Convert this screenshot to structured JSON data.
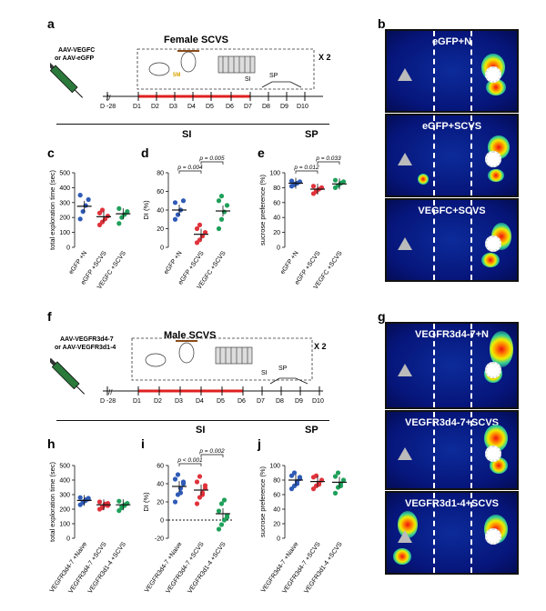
{
  "panels": {
    "a": "a",
    "b": "b",
    "c": "c",
    "d": "d",
    "e": "e",
    "f": "f",
    "g": "g",
    "h": "h",
    "i": "i",
    "j": "j"
  },
  "top": {
    "title": "Female SCVS",
    "virus_line1": "AAV-VEGFC",
    "virus_line2": "or AAV-eGFP",
    "repeat": "X 2",
    "cage_label": "5M",
    "timeline": [
      "D -28",
      "D1",
      "D2",
      "D3",
      "D4",
      "D5",
      "D6",
      "D7",
      "D8",
      "D9",
      "D10"
    ],
    "si": "SI",
    "sp": "SP",
    "section_si": "SI",
    "section_sp": "SP"
  },
  "bottom": {
    "title": "Male SCVS",
    "virus_line1": "AAV-VEGFR3d4-7",
    "virus_line2": "or AAV-VEGFR3d1-4",
    "repeat": "X 2",
    "cage_label": "5M",
    "timeline": [
      "D -28",
      "D1",
      "D2",
      "D3",
      "D4",
      "D5",
      "D6",
      "D7",
      "D8",
      "D9",
      "D10"
    ],
    "si": "SI",
    "sp": "SP",
    "section_si": "SI",
    "section_sp": "SP"
  },
  "heatmaps_top": [
    "eGFP+N",
    "eGFP+SCVS",
    "VEGFC+SCVS"
  ],
  "heatmaps_bottom": [
    "VEGFR3d4-7+N",
    "VEGFR3d4-7+SCVS",
    "VEGFR3d1-4+SCVS"
  ],
  "chart_data": [
    {
      "panel": "c",
      "type": "scatter",
      "ylabel": "total exploration time (sec)",
      "ylim": [
        0,
        500
      ],
      "yticks": [
        0,
        100,
        200,
        300,
        400,
        500
      ],
      "categories": [
        "eGFP +N",
        "eGFP +SCVS",
        "VEGFC +SCVS"
      ],
      "colors": [
        "#2f5bb7",
        "#e0333b",
        "#1fa05a"
      ],
      "means": [
        275,
        205,
        225
      ],
      "points": [
        [
          190,
          240,
          280,
          320,
          350
        ],
        [
          150,
          170,
          190,
          210,
          230,
          250
        ],
        [
          160,
          200,
          220,
          240,
          260
        ]
      ]
    },
    {
      "panel": "d",
      "type": "scatter",
      "ylabel": "DI (%)",
      "ylim": [
        0,
        80
      ],
      "yticks": [
        0,
        20,
        40,
        60,
        80
      ],
      "categories": [
        "eGFP +N",
        "eGFP +SCVS",
        "VEGFC +SCVS"
      ],
      "colors": [
        "#2f5bb7",
        "#e0333b",
        "#1fa05a"
      ],
      "means": [
        40,
        14,
        39
      ],
      "points": [
        [
          30,
          35,
          40,
          50,
          48
        ],
        [
          5,
          8,
          12,
          16,
          20,
          24
        ],
        [
          20,
          30,
          38,
          45,
          50,
          55
        ]
      ],
      "pvalues": [
        "p = 0.004",
        "p = 0.005"
      ]
    },
    {
      "panel": "e",
      "type": "scatter",
      "ylabel": "sucrose preference (%)",
      "ylim": [
        0,
        100
      ],
      "yticks": [
        0,
        20,
        40,
        60,
        80,
        100
      ],
      "categories": [
        "eGFP +N",
        "eGFP +SCVS",
        "VEGFC +SCVS"
      ],
      "colors": [
        "#2f5bb7",
        "#e0333b",
        "#1fa05a"
      ],
      "means": [
        86,
        78,
        85
      ],
      "points": [
        [
          82,
          84,
          86,
          88,
          89,
          85
        ],
        [
          72,
          75,
          78,
          80,
          82,
          76
        ],
        [
          80,
          83,
          86,
          88,
          90
        ]
      ],
      "pvalues": [
        "p = 0.012",
        "p = 0.033"
      ]
    },
    {
      "panel": "h",
      "type": "scatter",
      "ylabel": "total exploration time (sec)",
      "ylim": [
        0,
        500
      ],
      "yticks": [
        0,
        100,
        200,
        300,
        400,
        500
      ],
      "categories": [
        "VEGFR3d4-7 +Naive",
        "VEGFR3d4-7 +SCVS",
        "VEGFR3d1-4 +SCVS"
      ],
      "colors": [
        "#2f5bb7",
        "#e0333b",
        "#1fa05a"
      ],
      "means": [
        260,
        230,
        230
      ],
      "points": [
        [
          230,
          250,
          260,
          270,
          280,
          245,
          265,
          275
        ],
        [
          200,
          215,
          230,
          240,
          250,
          210,
          235,
          225
        ],
        [
          190,
          210,
          225,
          240,
          255,
          220,
          230
        ]
      ]
    },
    {
      "panel": "i",
      "type": "scatter",
      "ylabel": "DI (%)",
      "ylim": [
        -20,
        60
      ],
      "yticks": [
        -20,
        0,
        20,
        40,
        60
      ],
      "categories": [
        "VEGFR3d4-7 +Naive",
        "VEGFR3d4-7 +SCVS",
        "VEGFR3d1-4 +SCVS"
      ],
      "colors": [
        "#2f5bb7",
        "#e0333b",
        "#1fa05a"
      ],
      "means": [
        37,
        33,
        7
      ],
      "points": [
        [
          20,
          28,
          35,
          40,
          45,
          50,
          30,
          42
        ],
        [
          18,
          25,
          30,
          35,
          42,
          48,
          28,
          38
        ],
        [
          -10,
          -5,
          0,
          5,
          10,
          18,
          22,
          3
        ]
      ],
      "pvalues": [
        "p < 0.001",
        "p = 0.002"
      ]
    },
    {
      "panel": "j",
      "type": "scatter",
      "ylabel": "sucrose preference (%)",
      "ylim": [
        0,
        100
      ],
      "yticks": [
        0,
        20,
        40,
        60,
        80,
        100
      ],
      "categories": [
        "VEGFR3d4-7 +Naive",
        "VEGFR3d4-7 +SCVS",
        "VEGFR3d1-4 +SCVS"
      ],
      "colors": [
        "#2f5bb7",
        "#e0333b",
        "#1fa05a"
      ],
      "means": [
        80,
        78,
        77
      ],
      "points": [
        [
          68,
          72,
          78,
          82,
          86,
          90,
          75,
          84
        ],
        [
          68,
          72,
          76,
          80,
          84,
          86,
          74
        ],
        [
          62,
          70,
          75,
          80,
          85,
          90,
          72
        ]
      ]
    }
  ]
}
